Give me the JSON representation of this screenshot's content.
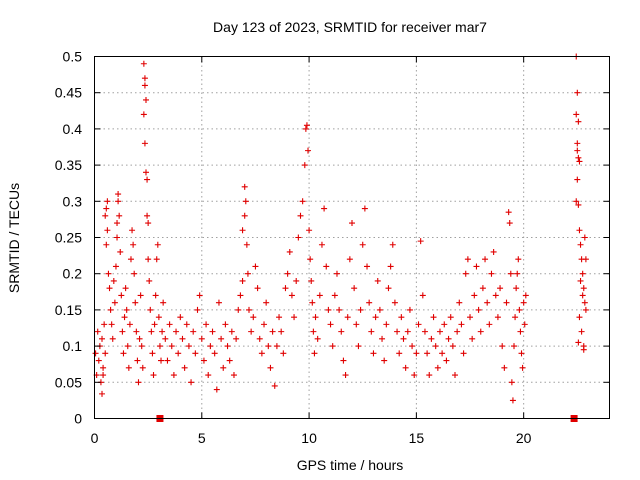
{
  "chart_data": {
    "type": "scatter",
    "title": "Day 123 of 2023, SRMTID for receiver mar7",
    "xlabel": "GPS time / hours",
    "ylabel": "SRMTID / TECUs",
    "xlim": [
      0,
      24
    ],
    "ylim": [
      0,
      0.5
    ],
    "x_ticks": [
      "0",
      "5",
      "10",
      "15",
      "20"
    ],
    "x_tick_values": [
      0,
      5,
      10,
      15,
      20
    ],
    "y_ticks": [
      "0",
      "0.05",
      "0.1",
      "0.15",
      "0.2",
      "0.25",
      "0.3",
      "0.35",
      "0.4",
      "0.45",
      "0.5"
    ],
    "y_tick_values": [
      0,
      0.05,
      0.1,
      0.15,
      0.2,
      0.25,
      0.3,
      0.35,
      0.4,
      0.45,
      0.5
    ],
    "grid": true,
    "marker": "plus",
    "color": "#e00000",
    "series": [
      {
        "name": "SRMTID",
        "points": [
          [
            0.05,
            0.09
          ],
          [
            0.1,
            0.06
          ],
          [
            0.15,
            0.12
          ],
          [
            0.2,
            0.08
          ],
          [
            0.25,
            0.1
          ],
          [
            0.3,
            0.05
          ],
          [
            0.35,
            0.11
          ],
          [
            0.4,
            0.07
          ],
          [
            0.45,
            0.13
          ],
          [
            0.5,
            0.09
          ],
          [
            0.35,
            0.034
          ],
          [
            0.4,
            0.06
          ],
          [
            0.5,
            0.28
          ],
          [
            0.55,
            0.29
          ],
          [
            0.6,
            0.3
          ],
          [
            0.6,
            0.26
          ],
          [
            0.55,
            0.24
          ],
          [
            0.65,
            0.2
          ],
          [
            0.7,
            0.18
          ],
          [
            0.75,
            0.15
          ],
          [
            0.8,
            0.13
          ],
          [
            0.85,
            0.11
          ],
          [
            0.9,
            0.19
          ],
          [
            0.95,
            0.16
          ],
          [
            1.0,
            0.21
          ],
          [
            1.05,
            0.25
          ],
          [
            1.05,
            0.27
          ],
          [
            1.1,
            0.31
          ],
          [
            1.1,
            0.3
          ],
          [
            1.15,
            0.28
          ],
          [
            1.2,
            0.23
          ],
          [
            1.25,
            0.17
          ],
          [
            1.3,
            0.12
          ],
          [
            1.35,
            0.09
          ],
          [
            1.4,
            0.14
          ],
          [
            1.45,
            0.18
          ],
          [
            1.5,
            0.15
          ],
          [
            1.55,
            0.1
          ],
          [
            1.6,
            0.07
          ],
          [
            1.65,
            0.13
          ],
          [
            1.7,
            0.22
          ],
          [
            1.75,
            0.26
          ],
          [
            1.8,
            0.24
          ],
          [
            1.85,
            0.2
          ],
          [
            1.9,
            0.16
          ],
          [
            1.95,
            0.12
          ],
          [
            2.0,
            0.08
          ],
          [
            2.05,
            0.05
          ],
          [
            2.1,
            0.11
          ],
          [
            2.15,
            0.17
          ],
          [
            2.2,
            0.1
          ],
          [
            2.25,
            0.07
          ],
          [
            2.3,
            0.49
          ],
          [
            2.35,
            0.47
          ],
          [
            2.35,
            0.46
          ],
          [
            2.4,
            0.44
          ],
          [
            2.3,
            0.42
          ],
          [
            2.35,
            0.38
          ],
          [
            2.4,
            0.34
          ],
          [
            2.45,
            0.33
          ],
          [
            2.45,
            0.28
          ],
          [
            2.5,
            0.27
          ],
          [
            2.5,
            0.22
          ],
          [
            2.55,
            0.19
          ],
          [
            2.6,
            0.15
          ],
          [
            2.65,
            0.12
          ],
          [
            2.7,
            0.09
          ],
          [
            2.75,
            0.06
          ],
          [
            2.8,
            0.13
          ],
          [
            2.85,
            0.17
          ],
          [
            2.9,
            0.22
          ],
          [
            2.95,
            0.24
          ],
          [
            3.0,
            0.14
          ],
          [
            3.05,
            0.1
          ],
          [
            3.1,
            0.08
          ],
          [
            3.15,
            0.12
          ],
          [
            3.2,
            0.16
          ],
          [
            3.3,
            0.11
          ],
          [
            3.4,
            0.08
          ],
          [
            3.5,
            0.13
          ],
          [
            3.6,
            0.1
          ],
          [
            3.7,
            0.06
          ],
          [
            3.8,
            0.12
          ],
          [
            3.9,
            0.09
          ],
          [
            4.0,
            0.14
          ],
          [
            4.1,
            0.11
          ],
          [
            4.2,
            0.07
          ],
          [
            4.3,
            0.13
          ],
          [
            4.4,
            0.1
          ],
          [
            4.5,
            0.05
          ],
          [
            4.6,
            0.12
          ],
          [
            4.7,
            0.09
          ],
          [
            4.8,
            0.15
          ],
          [
            4.9,
            0.17
          ],
          [
            5.0,
            0.11
          ],
          [
            5.1,
            0.08
          ],
          [
            5.2,
            0.13
          ],
          [
            5.3,
            0.06
          ],
          [
            5.4,
            0.1
          ],
          [
            5.5,
            0.12
          ],
          [
            5.6,
            0.09
          ],
          [
            5.7,
            0.04
          ],
          [
            5.8,
            0.16
          ],
          [
            5.9,
            0.11
          ],
          [
            6.0,
            0.07
          ],
          [
            6.1,
            0.13
          ],
          [
            6.2,
            0.1
          ],
          [
            6.3,
            0.08
          ],
          [
            6.4,
            0.12
          ],
          [
            6.5,
            0.06
          ],
          [
            6.6,
            0.11
          ],
          [
            6.7,
            0.15
          ],
          [
            6.8,
            0.17
          ],
          [
            6.9,
            0.19
          ],
          [
            6.9,
            0.26
          ],
          [
            7.0,
            0.28
          ],
          [
            7.0,
            0.32
          ],
          [
            7.05,
            0.3
          ],
          [
            7.1,
            0.24
          ],
          [
            7.15,
            0.2
          ],
          [
            7.2,
            0.15
          ],
          [
            7.3,
            0.12
          ],
          [
            7.4,
            0.14
          ],
          [
            7.5,
            0.21
          ],
          [
            7.6,
            0.18
          ],
          [
            7.7,
            0.11
          ],
          [
            7.8,
            0.09
          ],
          [
            7.9,
            0.13
          ],
          [
            8.0,
            0.16
          ],
          [
            8.1,
            0.1
          ],
          [
            8.2,
            0.07
          ],
          [
            8.3,
            0.12
          ],
          [
            8.4,
            0.045
          ],
          [
            8.5,
            0.1
          ],
          [
            8.6,
            0.14
          ],
          [
            8.7,
            0.12
          ],
          [
            8.8,
            0.09
          ],
          [
            8.9,
            0.18
          ],
          [
            9.0,
            0.2
          ],
          [
            9.1,
            0.23
          ],
          [
            9.2,
            0.17
          ],
          [
            9.3,
            0.14
          ],
          [
            9.4,
            0.19
          ],
          [
            9.5,
            0.25
          ],
          [
            9.6,
            0.28
          ],
          [
            9.7,
            0.3
          ],
          [
            9.8,
            0.35
          ],
          [
            9.85,
            0.4
          ],
          [
            9.9,
            0.405
          ],
          [
            9.95,
            0.37
          ],
          [
            10.0,
            0.26
          ],
          [
            10.05,
            0.22
          ],
          [
            10.1,
            0.19
          ],
          [
            10.15,
            0.16
          ],
          [
            10.2,
            0.12
          ],
          [
            10.25,
            0.09
          ],
          [
            10.3,
            0.14
          ],
          [
            10.4,
            0.11
          ],
          [
            10.5,
            0.17
          ],
          [
            10.6,
            0.24
          ],
          [
            10.7,
            0.29
          ],
          [
            10.8,
            0.21
          ],
          [
            10.9,
            0.15
          ],
          [
            11.0,
            0.13
          ],
          [
            11.1,
            0.1
          ],
          [
            11.2,
            0.17
          ],
          [
            11.3,
            0.2
          ],
          [
            11.4,
            0.15
          ],
          [
            11.5,
            0.12
          ],
          [
            11.6,
            0.08
          ],
          [
            11.7,
            0.06
          ],
          [
            11.8,
            0.14
          ],
          [
            11.9,
            0.22
          ],
          [
            12.0,
            0.27
          ],
          [
            12.1,
            0.18
          ],
          [
            12.2,
            0.13
          ],
          [
            12.3,
            0.1
          ],
          [
            12.4,
            0.15
          ],
          [
            12.5,
            0.24
          ],
          [
            12.6,
            0.29
          ],
          [
            12.7,
            0.21
          ],
          [
            12.8,
            0.16
          ],
          [
            12.9,
            0.12
          ],
          [
            13.0,
            0.09
          ],
          [
            13.1,
            0.14
          ],
          [
            13.2,
            0.19
          ],
          [
            13.3,
            0.15
          ],
          [
            13.4,
            0.11
          ],
          [
            13.5,
            0.08
          ],
          [
            13.6,
            0.13
          ],
          [
            13.7,
            0.18
          ],
          [
            13.8,
            0.21
          ],
          [
            13.9,
            0.24
          ],
          [
            14.0,
            0.16
          ],
          [
            14.1,
            0.12
          ],
          [
            14.2,
            0.09
          ],
          [
            14.3,
            0.14
          ],
          [
            14.4,
            0.11
          ],
          [
            14.5,
            0.07
          ],
          [
            14.6,
            0.12
          ],
          [
            14.7,
            0.15
          ],
          [
            14.8,
            0.1
          ],
          [
            14.9,
            0.06
          ],
          [
            15.0,
            0.09
          ],
          [
            15.1,
            0.13
          ],
          [
            15.2,
            0.245
          ],
          [
            15.3,
            0.17
          ],
          [
            15.4,
            0.12
          ],
          [
            15.5,
            0.09
          ],
          [
            15.6,
            0.06
          ],
          [
            15.7,
            0.11
          ],
          [
            15.8,
            0.14
          ],
          [
            15.9,
            0.1
          ],
          [
            16.0,
            0.07
          ],
          [
            16.1,
            0.12
          ],
          [
            16.2,
            0.09
          ],
          [
            16.3,
            0.13
          ],
          [
            16.4,
            0.08
          ],
          [
            16.5,
            0.11
          ],
          [
            16.6,
            0.14
          ],
          [
            16.7,
            0.1
          ],
          [
            16.8,
            0.06
          ],
          [
            16.9,
            0.12
          ],
          [
            17.0,
            0.16
          ],
          [
            17.1,
            0.13
          ],
          [
            17.2,
            0.09
          ],
          [
            17.3,
            0.2
          ],
          [
            17.4,
            0.22
          ],
          [
            17.5,
            0.14
          ],
          [
            17.6,
            0.11
          ],
          [
            17.7,
            0.17
          ],
          [
            17.8,
            0.21
          ],
          [
            17.9,
            0.15
          ],
          [
            18.0,
            0.12
          ],
          [
            18.1,
            0.18
          ],
          [
            18.2,
            0.22
          ],
          [
            18.3,
            0.16
          ],
          [
            18.4,
            0.13
          ],
          [
            18.5,
            0.2
          ],
          [
            18.6,
            0.23
          ],
          [
            18.7,
            0.17
          ],
          [
            18.8,
            0.14
          ],
          [
            18.9,
            0.18
          ],
          [
            19.0,
            0.1
          ],
          [
            19.1,
            0.07
          ],
          [
            19.2,
            0.16
          ],
          [
            19.3,
            0.285
          ],
          [
            19.35,
            0.27
          ],
          [
            19.4,
            0.2
          ],
          [
            19.45,
            0.05
          ],
          [
            19.5,
            0.025
          ],
          [
            19.55,
            0.1
          ],
          [
            19.6,
            0.14
          ],
          [
            19.65,
            0.18
          ],
          [
            19.7,
            0.2
          ],
          [
            19.75,
            0.22
          ],
          [
            19.8,
            0.15
          ],
          [
            19.85,
            0.12
          ],
          [
            19.9,
            0.09
          ],
          [
            19.95,
            0.07
          ],
          [
            20.0,
            0.16
          ],
          [
            20.05,
            0.13
          ],
          [
            20.1,
            0.17
          ],
          [
            22.45,
            0.5
          ],
          [
            22.5,
            0.45
          ],
          [
            22.55,
            0.41
          ],
          [
            22.45,
            0.42
          ],
          [
            22.5,
            0.38
          ],
          [
            22.55,
            0.36
          ],
          [
            22.5,
            0.33
          ],
          [
            22.45,
            0.3
          ],
          [
            22.55,
            0.295
          ],
          [
            22.6,
            0.26
          ],
          [
            22.65,
            0.24
          ],
          [
            22.7,
            0.22
          ],
          [
            22.75,
            0.2
          ],
          [
            22.8,
            0.18
          ],
          [
            22.85,
            0.16
          ],
          [
            22.6,
            0.14
          ],
          [
            22.7,
            0.12
          ],
          [
            22.8,
            0.1
          ],
          [
            22.55,
            0.105
          ],
          [
            22.9,
            0.22
          ],
          [
            22.85,
            0.25
          ],
          [
            22.75,
            0.17
          ],
          [
            22.9,
            0.15
          ],
          [
            22.65,
            0.19
          ],
          [
            22.8,
            0.095
          ],
          [
            22.5,
            0.37
          ],
          [
            22.6,
            0.355
          ]
        ]
      }
    ],
    "zero_markers": [
      3.05,
      22.35
    ]
  }
}
